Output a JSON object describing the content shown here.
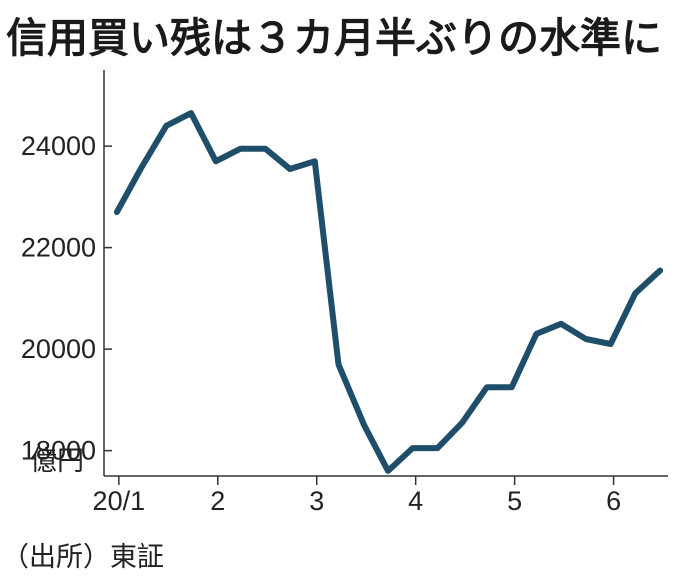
{
  "chart_data": {
    "type": "line",
    "title": "信用買い残は３カ月半ぶりの水準に",
    "ylabel": "億円",
    "source": "（出所）東証",
    "ylim": [
      17500,
      25500
    ],
    "yticks": [
      {
        "value": 18000,
        "label": "18000"
      },
      {
        "value": 20000,
        "label": "20000"
      },
      {
        "value": 22000,
        "label": "22000"
      },
      {
        "value": 24000,
        "label": "24000"
      }
    ],
    "xlim": [
      0.85,
      6.55
    ],
    "xticks": [
      {
        "value": 1,
        "label": "20/1"
      },
      {
        "value": 2,
        "label": "2"
      },
      {
        "value": 3,
        "label": "3"
      },
      {
        "value": 4,
        "label": "4"
      },
      {
        "value": 5,
        "label": "5"
      },
      {
        "value": 6,
        "label": "6"
      }
    ],
    "series": [
      {
        "color": "#1f4e6b",
        "x": [
          0.98,
          1.22,
          1.48,
          1.73,
          1.98,
          2.23,
          2.48,
          2.73,
          2.98,
          3.22,
          3.48,
          3.72,
          3.97,
          4.22,
          4.47,
          4.72,
          4.97,
          5.22,
          5.47,
          5.72,
          5.97,
          6.22,
          6.47
        ],
        "y": [
          22700,
          23550,
          24400,
          24650,
          23700,
          23950,
          23950,
          23550,
          23700,
          19700,
          18500,
          17600,
          18050,
          18050,
          18550,
          19250,
          19250,
          20300,
          20500,
          20200,
          20100,
          21100,
          21550
        ]
      }
    ]
  }
}
